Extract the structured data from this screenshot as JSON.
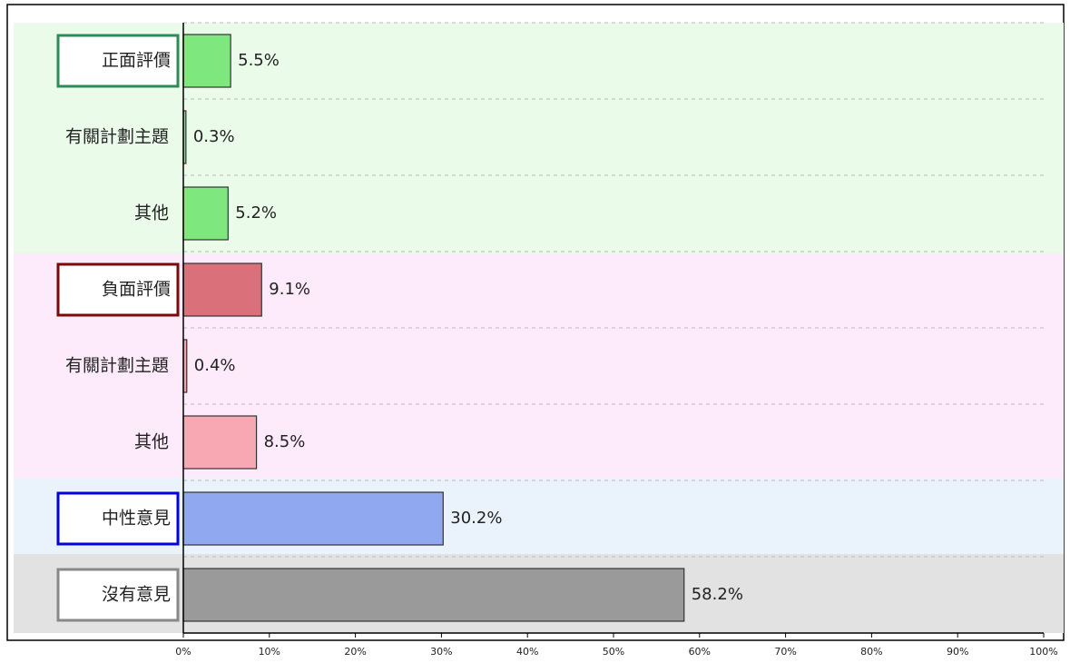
{
  "chart_data": {
    "type": "hbar",
    "categories": [
      "正面評價",
      "有關計劃主題",
      "其他",
      "負面評價",
      "有關計劃主題",
      "其他",
      "中性意見",
      "沒有意見"
    ],
    "values": [
      5.5,
      0.3,
      5.2,
      9.1,
      0.4,
      8.5,
      30.2,
      58.2
    ],
    "value_labels": [
      "5.5%",
      "0.3%",
      "5.2%",
      "9.1%",
      "0.4%",
      "8.5%",
      "30.2%",
      "58.2%"
    ],
    "colors": [
      "#7ee87e",
      "#7ee87e",
      "#7ee87e",
      "#d9707a",
      "#f4a0aa",
      "#f7a8b2",
      "#8fa8ef",
      "#9a9a9a"
    ],
    "xlim": [
      0,
      100
    ],
    "xticks": [
      {
        "value": 0,
        "label": "0%"
      },
      {
        "value": 10,
        "label": "10%"
      },
      {
        "value": 20,
        "label": "20%"
      },
      {
        "value": 30,
        "label": "30%"
      },
      {
        "value": 40,
        "label": "40%"
      },
      {
        "value": 50,
        "label": "50%"
      },
      {
        "value": 60,
        "label": "60%"
      },
      {
        "value": 70,
        "label": "70%"
      },
      {
        "value": 80,
        "label": "80%"
      },
      {
        "value": 90,
        "label": "90%"
      },
      {
        "value": 100,
        "label": "100%"
      }
    ]
  }
}
